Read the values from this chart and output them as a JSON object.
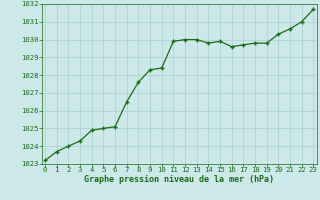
{
  "x": [
    0,
    1,
    2,
    3,
    4,
    5,
    6,
    7,
    8,
    9,
    10,
    11,
    12,
    13,
    14,
    15,
    16,
    17,
    18,
    19,
    20,
    21,
    22,
    23
  ],
  "y": [
    1023.2,
    1023.7,
    1024.0,
    1024.3,
    1024.9,
    1025.0,
    1025.1,
    1026.5,
    1027.6,
    1028.3,
    1028.4,
    1029.9,
    1030.0,
    1030.0,
    1029.8,
    1029.9,
    1029.6,
    1029.7,
    1029.8,
    1029.8,
    1030.3,
    1030.6,
    1031.0,
    1031.7
  ],
  "line_color": "#1a6b1a",
  "marker_color": "#1a6b1a",
  "bg_color": "#cce8e8",
  "grid_color": "#aacfcf",
  "xlabel": "Graphe pression niveau de la mer (hPa)",
  "xlabel_color": "#1a6b1a",
  "tick_color": "#1a6b1a",
  "ylim": [
    1023,
    1032
  ],
  "xlim_min": -0.3,
  "xlim_max": 23.3,
  "yticks": [
    1023,
    1024,
    1025,
    1026,
    1027,
    1028,
    1029,
    1030,
    1031,
    1032
  ],
  "xticks": [
    0,
    1,
    2,
    3,
    4,
    5,
    6,
    7,
    8,
    9,
    10,
    11,
    12,
    13,
    14,
    15,
    16,
    17,
    18,
    19,
    20,
    21,
    22,
    23
  ],
  "line_width": 0.9,
  "marker_size": 3.5,
  "tick_fontsize": 5.2,
  "xlabel_fontsize": 6.0
}
